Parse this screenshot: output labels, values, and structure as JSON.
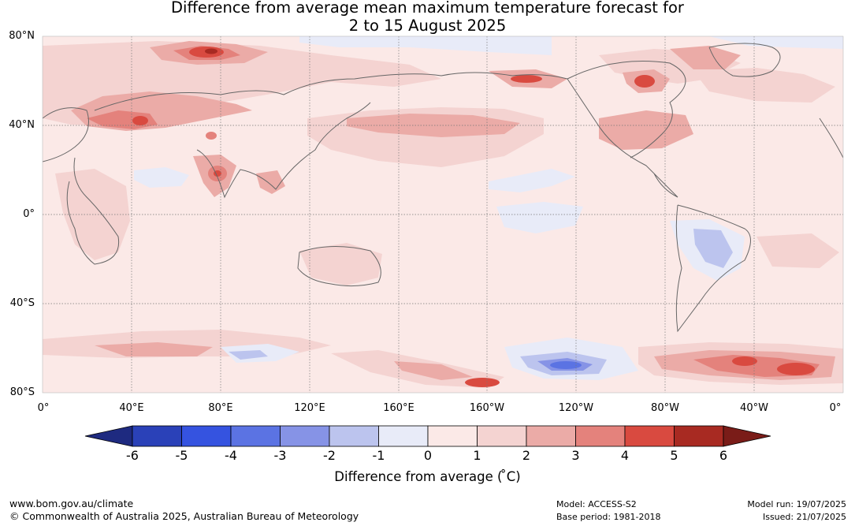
{
  "title": {
    "line1": "Difference from average mean maximum temperature forecast for",
    "line2": "2 to 15 August 2025"
  },
  "map": {
    "lat_labels": [
      "80°N",
      "40°N",
      "0°",
      "40°S",
      "80°S"
    ],
    "lon_labels": [
      "0°",
      "40°E",
      "80°E",
      "120°E",
      "160°E",
      "160°W",
      "120°W",
      "80°W",
      "40°W",
      "0°"
    ],
    "colors": {
      "background_anomaly_0_1": "#fbe9e7",
      "anomaly_1_2": "#f4d3d1",
      "anomaly_2_3": "#ebaba7",
      "anomaly_3_4": "#e4827c",
      "anomaly_4_5": "#d94a40",
      "anomaly_neg1_0": "#e8ebf8",
      "anomaly_neg2_neg1": "#bcc4ee",
      "anomaly_neg3_neg2": "#8693e6",
      "coastline": "#666666",
      "grid": "#777777"
    }
  },
  "colorbar": {
    "ticks": [
      "-6",
      "-5",
      "-4",
      "-3",
      "-2",
      "-1",
      "0",
      "1",
      "2",
      "3",
      "4",
      "5",
      "6"
    ],
    "colors": [
      "#1e2a80",
      "#2a41b8",
      "#3553e0",
      "#5b73e3",
      "#8693e6",
      "#bcc4ee",
      "#e8ebf8",
      "#fbe9e7",
      "#f4d3d1",
      "#ebaba7",
      "#e4827c",
      "#d94a40",
      "#a82a22",
      "#7a1c18"
    ],
    "label": "Difference from average ( ̊C)"
  },
  "footer": {
    "website": "www.bom.gov.au/climate",
    "copyright": "© Commonwealth of Australia 2025, Australian Bureau of Meteorology",
    "model": "Model: ACCESS-S2",
    "base_period": "Base period: 1981-2018",
    "model_run": "Model run: 19/07/2025",
    "issued": "Issued: 21/07/2025"
  }
}
